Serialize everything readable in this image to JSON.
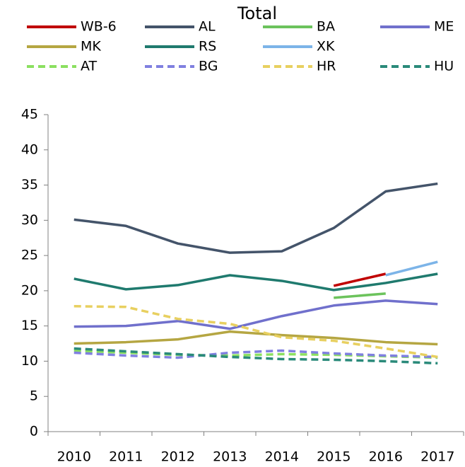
{
  "chart_data": {
    "type": "line",
    "title": "Total",
    "categories": [
      "2010",
      "2011",
      "2012",
      "2013",
      "2014",
      "2015",
      "2016",
      "2017"
    ],
    "ylim": [
      0,
      45
    ],
    "yticks": [
      0,
      5,
      10,
      15,
      20,
      25,
      30,
      35,
      40,
      45
    ],
    "grid": false,
    "series": [
      {
        "name": "WB-6",
        "color": "#c00000",
        "dash": false,
        "values": [
          null,
          null,
          null,
          null,
          null,
          20.7,
          22.4,
          null
        ]
      },
      {
        "name": "AL",
        "color": "#44546a",
        "dash": false,
        "values": [
          30.1,
          29.2,
          26.7,
          25.4,
          25.6,
          28.9,
          34.1,
          35.2
        ]
      },
      {
        "name": "BA",
        "color": "#6cc35c",
        "dash": false,
        "values": [
          null,
          null,
          null,
          null,
          null,
          19.0,
          19.6,
          null
        ]
      },
      {
        "name": "ME",
        "color": "#7070cc",
        "dash": false,
        "values": [
          14.9,
          15.0,
          15.7,
          14.6,
          16.4,
          17.9,
          18.6,
          18.1
        ]
      },
      {
        "name": "MK",
        "color": "#b5a642",
        "dash": false,
        "values": [
          12.5,
          12.7,
          13.1,
          14.2,
          13.7,
          13.3,
          12.7,
          12.4
        ]
      },
      {
        "name": "RS",
        "color": "#1f7a6e",
        "dash": false,
        "values": [
          21.7,
          20.2,
          20.8,
          22.2,
          21.4,
          20.1,
          21.1,
          22.4
        ]
      },
      {
        "name": "XK",
        "color": "#7cb4e8",
        "dash": false,
        "values": [
          null,
          null,
          null,
          null,
          null,
          null,
          22.2,
          24.1
        ]
      },
      {
        "name": "AT",
        "color": "#8be060",
        "dash": true,
        "values": [
          11.5,
          11.2,
          10.9,
          10.8,
          11.0,
          10.9,
          10.7,
          10.5
        ]
      },
      {
        "name": "BG",
        "color": "#8080e0",
        "dash": true,
        "values": [
          11.2,
          10.8,
          10.5,
          11.2,
          11.5,
          11.1,
          10.8,
          10.6
        ]
      },
      {
        "name": "HR",
        "color": "#e8d060",
        "dash": true,
        "values": [
          17.8,
          17.7,
          16.0,
          15.3,
          13.4,
          12.9,
          11.8,
          10.6
        ]
      },
      {
        "name": "HU",
        "color": "#2a8a7a",
        "dash": true,
        "values": [
          11.8,
          11.4,
          11.0,
          10.6,
          10.3,
          10.2,
          10.0,
          9.7
        ]
      }
    ]
  }
}
